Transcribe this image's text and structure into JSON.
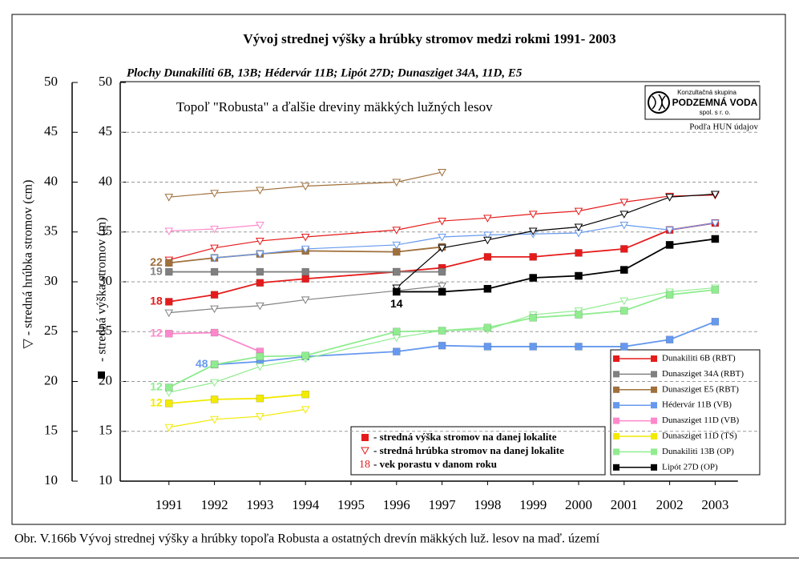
{
  "chart_data": {
    "type": "line",
    "title": "Vývoj strednej výšky a hrúbky stromov medzi rokmi 1991- 2003",
    "subtitle": "Plochy Dunakiliti 6B, 13B; Hédervár 11B; Lipót 27D; Dunasziget 34A, 11D, E5",
    "annotation": "Topoľ \"Robusta\" a ďalšie dreviny mäkkých lužných lesov",
    "source": "Podľa HUN údajov",
    "logo": {
      "top": "Konzultačná skupina",
      "name": "PODZEMNÁ VODA",
      "bottom": "spol. s r. o."
    },
    "ylabel": "- stredná výška stromov (m)",
    "y2label": "▽ - stredná hrúbka stromov (cm)",
    "caption": "Obr. V.166b Vývoj strednej výšky a hrúbky topoľa Robusta a ostatných drevín mäkkých luž. lesov na maď. území",
    "xlim": [
      1990,
      2003.5
    ],
    "xticks": [
      1991,
      1992,
      1993,
      1994,
      1995,
      1996,
      1997,
      1998,
      1999,
      2000,
      2001,
      2002,
      2003
    ],
    "ylim": [
      10,
      50
    ],
    "yticks": [
      10,
      15,
      20,
      25,
      30,
      35,
      40,
      45,
      50
    ],
    "y2lim": [
      10,
      50
    ],
    "y2ticks": [
      10,
      15,
      20,
      25,
      30,
      35,
      40,
      45,
      50
    ],
    "grid": true,
    "legend_position": "lower right",
    "key": {
      "height": "- stredná výška stromov na danej lokalite",
      "diameter": "- stredná hrúbka stromov na danej lokalite",
      "age_example": 18,
      "age": "- vek porastu v danom roku",
      "color": "#e51b1b"
    },
    "series": [
      {
        "name": "Dunakiliti 6B (RBT)",
        "color": "#e51b1b",
        "age": 18,
        "age_position": "left",
        "x": [
          1991,
          1992,
          1993,
          1994,
          1996,
          1997,
          1998,
          1999,
          2000,
          2001,
          2002,
          2003
        ],
        "height": [
          28.0,
          28.7,
          29.9,
          30.3,
          31.0,
          31.4,
          32.5,
          32.5,
          32.9,
          33.3,
          35.2,
          35.9
        ],
        "diameter": [
          32.2,
          33.4,
          34.1,
          34.5,
          35.2,
          36.1,
          36.4,
          36.8,
          37.1,
          38.0,
          38.6,
          38.7
        ]
      },
      {
        "name": "Dunasziget 34A (RBT)",
        "color": "#808080",
        "age": 19,
        "age_position": "left",
        "x": [
          1991,
          1992,
          1993,
          1994,
          1996,
          1997
        ],
        "height": [
          31.0,
          31.0,
          31.0,
          31.0,
          31.0,
          31.0
        ],
        "diameter": [
          26.9,
          27.3,
          27.6,
          28.2,
          29.1,
          29.6
        ]
      },
      {
        "name": "Dunasziget E5 (RBT)",
        "color": "#a0703c",
        "age": 22,
        "age_position": "left",
        "x": [
          1991,
          1992,
          1993,
          1994,
          1996,
          1997
        ],
        "height": [
          31.9,
          32.4,
          32.8,
          33.1,
          33.0,
          33.5
        ],
        "diameter": [
          38.5,
          38.9,
          39.2,
          39.6,
          40.0,
          41.0
        ]
      },
      {
        "name": "Hédervár 11B (VB)",
        "color": "#6699ee",
        "age": 48,
        "age_position": "left",
        "x": [
          1992,
          1993,
          1994,
          1996,
          1997,
          1998,
          1999,
          2000,
          2001,
          2002,
          2003
        ],
        "height": [
          21.7,
          22.0,
          22.5,
          23.0,
          23.6,
          23.5,
          23.5,
          23.5,
          23.5,
          24.2,
          26.0
        ],
        "diameter": [
          32.4,
          32.8,
          33.3,
          33.7,
          34.5,
          34.7,
          34.8,
          34.9,
          35.7,
          35.2,
          35.9
        ]
      },
      {
        "name": "Dunasziget 11D (VB)",
        "color": "#ff88cc",
        "age": 12,
        "age_position": "left",
        "x": [
          1991,
          1992,
          1993
        ],
        "height": [
          24.8,
          24.9,
          23.0
        ],
        "diameter": [
          35.1,
          35.3,
          35.7
        ]
      },
      {
        "name": "Dunasziget 11D (TS)",
        "color": "#f2ea00",
        "age": 12,
        "age_position": "left",
        "x": [
          1991,
          1992,
          1993,
          1994
        ],
        "height": [
          17.8,
          18.2,
          18.3,
          18.7
        ],
        "diameter": [
          15.4,
          16.2,
          16.5,
          17.2
        ]
      },
      {
        "name": "Dunakiliti 13B (OP)",
        "color": "#8fec8f",
        "age": 12,
        "age_position": "left",
        "x": [
          1991,
          1992,
          1993,
          1994,
          1996,
          1997,
          1998,
          1999,
          2000,
          2001,
          2002,
          2003
        ],
        "height": [
          19.4,
          21.7,
          22.5,
          22.6,
          25.0,
          25.1,
          25.4,
          26.4,
          26.7,
          27.1,
          28.7,
          29.2
        ],
        "diameter": [
          18.9,
          19.9,
          21.5,
          22.3,
          24.4,
          25.1,
          25.2,
          26.7,
          27.1,
          28.1,
          29.0,
          29.4
        ]
      },
      {
        "name": "Lipót 27D (OP)",
        "color": "#000000",
        "age": 14,
        "age_position": "below",
        "x": [
          1996,
          1997,
          1998,
          1999,
          2000,
          2001,
          2002,
          2003
        ],
        "height": [
          29.0,
          29.0,
          29.3,
          30.4,
          30.6,
          31.2,
          33.7,
          34.3
        ],
        "diameter": [
          29.4,
          33.4,
          34.2,
          35.1,
          35.5,
          36.8,
          38.5,
          38.8
        ]
      }
    ]
  }
}
